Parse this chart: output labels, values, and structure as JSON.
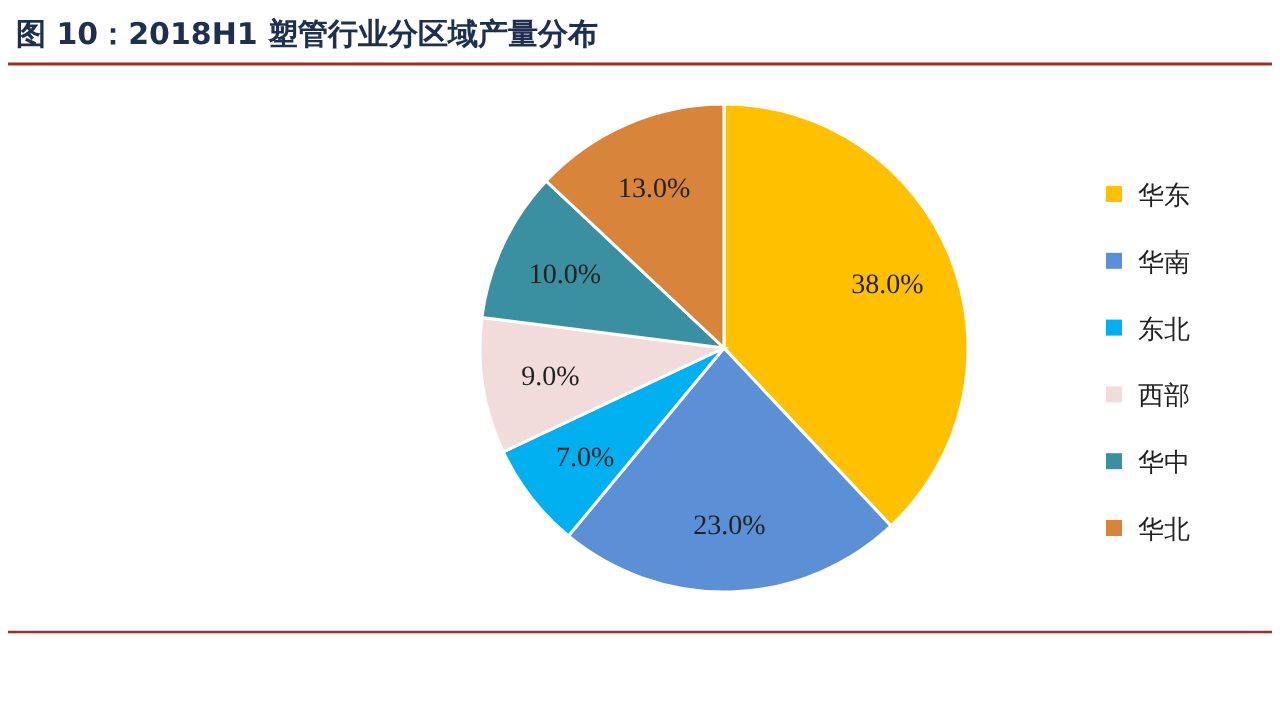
{
  "chart_data": {
    "type": "pie",
    "title": "图 10：2018H1 塑管行业分区域产量分布",
    "categories": [
      "华东",
      "华南",
      "东北",
      "西部",
      "华中",
      "华北"
    ],
    "values": [
      38.0,
      23.0,
      7.0,
      9.0,
      10.0,
      13.0
    ],
    "value_labels": [
      "38.0%",
      "23.0%",
      "7.0%",
      "9.0%",
      "10.0%",
      "13.0%"
    ],
    "colors": [
      "#ffc000",
      "#5b8fd6",
      "#00b0f0",
      "#f2dcdb",
      "#3a8fa0",
      "#d9843b"
    ],
    "legend": "right"
  }
}
